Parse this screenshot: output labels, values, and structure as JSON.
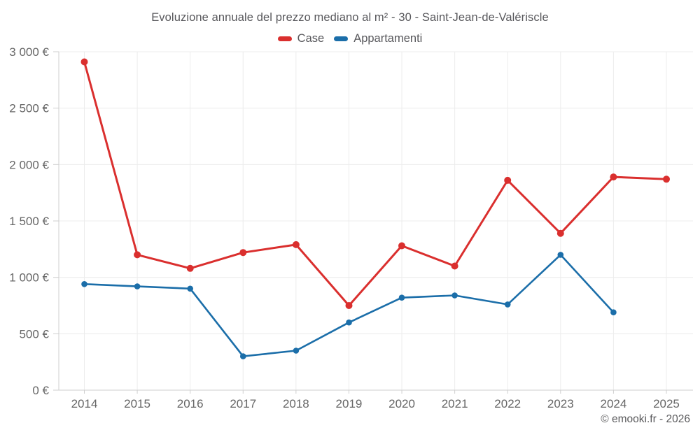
{
  "title": "Evoluzione annuale del prezzo mediano al m² - 30 - Saint-Jean-de-Valériscle",
  "legend": {
    "items": [
      {
        "label": "Case",
        "color": "#da2f2e"
      },
      {
        "label": "Appartamenti",
        "color": "#1b6ea9"
      }
    ]
  },
  "footer": {
    "credit": "© emooki.fr - 2026"
  },
  "chart_data": {
    "type": "line",
    "title": "Evoluzione annuale del prezzo mediano al m² - 30 - Saint-Jean-de-Valériscle",
    "x": [
      "2014",
      "2015",
      "2016",
      "2017",
      "2018",
      "2019",
      "2020",
      "2021",
      "2022",
      "2023",
      "2024",
      "2025"
    ],
    "series": [
      {
        "name": "Case",
        "color": "#da2f2e",
        "values": [
          2910,
          1200,
          1080,
          1220,
          1290,
          750,
          1280,
          1100,
          1860,
          1390,
          1890,
          1870
        ]
      },
      {
        "name": "Appartamenti",
        "color": "#1b6ea9",
        "values": [
          940,
          920,
          900,
          300,
          350,
          600,
          820,
          840,
          760,
          1200,
          690,
          null
        ]
      }
    ],
    "xlabel": "",
    "ylabel": "",
    "ylim": [
      0,
      3000
    ],
    "ytick_step": 500,
    "ytick_labels": [
      "0 €",
      "500 €",
      "1 000 €",
      "1 500 €",
      "2 000 €",
      "2 500 €",
      "3 000 €"
    ],
    "grid": true,
    "legend_position": "top",
    "unit": "€"
  }
}
